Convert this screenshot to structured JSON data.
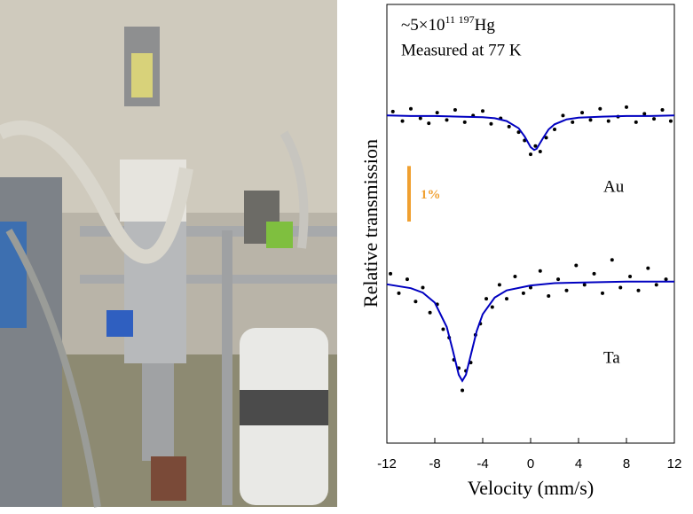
{
  "chart_data": {
    "type": "scatter",
    "annotation": {
      "prefix": "~5×10",
      "exponent": "11",
      "mass": "197",
      "element": "Hg"
    },
    "subtitle": "Measured at 77 K",
    "x_label": "Velocity (mm/s)",
    "y_label": "Relative transmission",
    "xlim": [
      -12,
      12
    ],
    "xticks": [
      -12,
      -8,
      -4,
      0,
      4,
      8,
      12
    ],
    "ylim": [
      -7.9,
      0
    ],
    "scale_bar": {
      "value": 1,
      "label": "1%",
      "color": "#f0a030"
    },
    "series": [
      {
        "name": "Au",
        "color": "#000000",
        "x": [
          -11.5,
          -10.7,
          -10,
          -9.2,
          -8.5,
          -7.8,
          -7,
          -6.3,
          -5.5,
          -4.8,
          -4,
          -3.3,
          -2.5,
          -1.8,
          -1,
          -0.5,
          0,
          0.4,
          0.8,
          1.3,
          2,
          2.7,
          3.5,
          4.3,
          5,
          5.8,
          6.5,
          7.3,
          8,
          8.8,
          9.5,
          10.3,
          11,
          11.7
        ],
        "values": [
          -1.93,
          -2.1,
          -1.88,
          -2.05,
          -2.14,
          -1.95,
          -2.08,
          -1.9,
          -2.12,
          -2.0,
          -1.92,
          -2.15,
          -2.05,
          -2.2,
          -2.3,
          -2.45,
          -2.7,
          -2.55,
          -2.65,
          -2.4,
          -2.25,
          -2.0,
          -2.12,
          -1.95,
          -2.08,
          -1.88,
          -2.1,
          -2.02,
          -1.85,
          -2.12,
          -1.97,
          -2.06,
          -1.9,
          -2.1
        ],
        "fit": {
          "color": "#0000c0",
          "x": [
            -12,
            -10,
            -8,
            -6,
            -4,
            -3,
            -2,
            -1,
            -0.5,
            0,
            0.3,
            0.5,
            1,
            1.5,
            2,
            3,
            4,
            6,
            8,
            10,
            12
          ],
          "values": [
            -2.0,
            -2.01,
            -2.01,
            -2.02,
            -2.03,
            -2.05,
            -2.1,
            -2.23,
            -2.38,
            -2.57,
            -2.62,
            -2.6,
            -2.42,
            -2.25,
            -2.16,
            -2.07,
            -2.04,
            -2.02,
            -2.01,
            -2.01,
            -2.0
          ]
        }
      },
      {
        "name": "Ta",
        "color": "#000000",
        "x": [
          -11.7,
          -11,
          -10.3,
          -9.6,
          -9,
          -8.4,
          -7.8,
          -7.3,
          -6.8,
          -6.4,
          -6,
          -5.7,
          -5.4,
          -5,
          -4.6,
          -4.2,
          -3.7,
          -3.2,
          -2.6,
          -2,
          -1.3,
          -0.6,
          0,
          0.8,
          1.5,
          2.3,
          3,
          3.8,
          4.5,
          5.3,
          6,
          6.8,
          7.5,
          8.3,
          9,
          9.8,
          10.5,
          11.3
        ],
        "values": [
          -4.85,
          -5.2,
          -4.95,
          -5.35,
          -5.1,
          -5.55,
          -5.4,
          -5.85,
          -6.0,
          -6.4,
          -6.55,
          -6.95,
          -6.6,
          -6.45,
          -5.95,
          -5.75,
          -5.3,
          -5.45,
          -5.05,
          -5.3,
          -4.9,
          -5.2,
          -5.1,
          -4.8,
          -5.25,
          -4.95,
          -5.15,
          -4.7,
          -5.05,
          -4.85,
          -5.2,
          -4.6,
          -5.1,
          -4.9,
          -5.15,
          -4.75,
          -5.05,
          -4.95
        ],
        "fit": {
          "color": "#0000c0",
          "x": [
            -12,
            -10,
            -9,
            -8,
            -7,
            -6.5,
            -6,
            -5.7,
            -5.4,
            -5,
            -4.5,
            -4,
            -3,
            -2,
            0,
            2,
            4,
            8,
            12
          ],
          "values": [
            -5.04,
            -5.11,
            -5.19,
            -5.37,
            -5.81,
            -6.23,
            -6.67,
            -6.78,
            -6.67,
            -6.32,
            -5.88,
            -5.58,
            -5.28,
            -5.15,
            -5.06,
            -5.02,
            -5.01,
            -4.99,
            -4.99
          ]
        }
      }
    ]
  }
}
